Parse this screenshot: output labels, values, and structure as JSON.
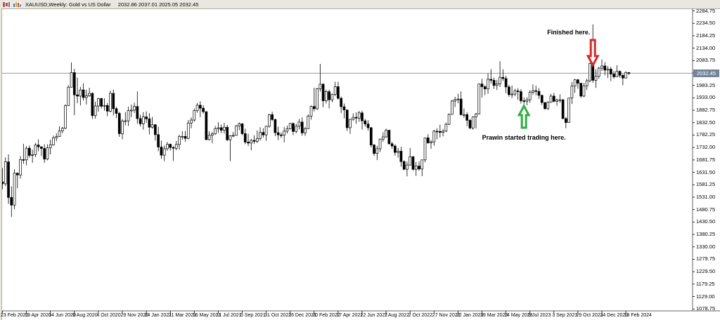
{
  "window": {
    "title_symbol": "XAUUSD,Weekly:",
    "title_description": "Gold vs US Dollar",
    "title_ohlc": "2032.86 2037.01 2025.05 2032.45",
    "icons": [
      "candlestick-chart-icon",
      "bar-chart-icon"
    ]
  },
  "colors": {
    "bull_body": "#ffffff",
    "bear_body": "#000000",
    "candle_outline": "#000000",
    "price_line": "#9a9a9a",
    "price_box_bg": "#74859a",
    "price_box_text": "#ffffff",
    "axis_line": "#666666",
    "annotation_red": "#d42a2a",
    "annotation_green": "#2fae44"
  },
  "axis": {
    "current_price": "2032.45",
    "price_ticks": [
      "2284.75",
      "2234.50",
      "2184.25",
      "2134.00",
      "2083.75",
      "2033.50",
      "1983.25",
      "1933.00",
      "1882.75",
      "1832.50",
      "1782.25",
      "1732.00",
      "1681.75",
      "1631.50",
      "1581.25",
      "1531.00",
      "1480.75",
      "1430.50",
      "1380.25",
      "1330.00",
      "1279.75",
      "1229.50",
      "1179.25",
      "1129.00",
      "1078.75"
    ],
    "date_ticks": [
      "23 Feb 2020",
      "19 Apr 2020",
      "14 Jun 2020",
      "9 Aug 2020",
      "4 Oct 2020",
      "29 Nov 2020",
      "24 Jan 2021",
      "21 Mar 2021",
      "16 May 2021",
      "11 Jul 2021",
      "5 Sep 2021",
      "31 Oct 2021",
      "26 Dec 2021",
      "20 Feb 2022",
      "17 Apr 2022",
      "12 Jun 2022",
      "7 Aug 2022",
      "2 Oct 2022",
      "27 Nov 2022",
      "22 Jan 2023",
      "19 Mar 2023",
      "14 May 2023",
      "9 Jul 2023",
      "3 Sep 2023",
      "29 Oct 2023",
      "24 Dec 2023",
      "18 Feb 2024"
    ]
  },
  "chart_data": {
    "type": "candlestick",
    "symbol": "XAUUSD",
    "timeframe": "Weekly",
    "title": "XAUUSD,Weekly: Gold vs US Dollar",
    "start_date": "23 Feb 2020",
    "end_date": "25 Feb 2024",
    "ylim": [
      1071,
      2294
    ],
    "grid": false,
    "current_price": 2032.45,
    "first_open": 1593,
    "candles_format": [
      "high",
      "low",
      "close"
    ],
    "candles": [
      [
        1649,
        1563,
        1585
      ],
      [
        1692,
        1576,
        1674
      ],
      [
        1704,
        1504,
        1530
      ],
      [
        1575,
        1451,
        1499
      ],
      [
        1644,
        1482,
        1628
      ],
      [
        1631,
        1567,
        1621
      ],
      [
        1697,
        1606,
        1683
      ],
      [
        1747,
        1666,
        1682
      ],
      [
        1738,
        1660,
        1729
      ],
      [
        1740,
        1691,
        1700
      ],
      [
        1723,
        1670,
        1703
      ],
      [
        1751,
        1693,
        1742
      ],
      [
        1765,
        1717,
        1735
      ],
      [
        1735,
        1697,
        1728
      ],
      [
        1745,
        1670,
        1685
      ],
      [
        1745,
        1680,
        1731
      ],
      [
        1764,
        1704,
        1743
      ],
      [
        1780,
        1740,
        1771
      ],
      [
        1789,
        1757,
        1776
      ],
      [
        1818,
        1775,
        1799
      ],
      [
        1815,
        1790,
        1810
      ],
      [
        1906,
        1806,
        1902
      ],
      [
        1984,
        1900,
        1976
      ],
      [
        2076,
        1980,
        2035
      ],
      [
        2050,
        1863,
        1945
      ],
      [
        2015,
        1911,
        1940
      ],
      [
        1977,
        1902,
        1965
      ],
      [
        1992,
        1922,
        1934
      ],
      [
        1966,
        1906,
        1941
      ],
      [
        1974,
        1937,
        1951
      ],
      [
        1955,
        1848,
        1861
      ],
      [
        1917,
        1849,
        1900
      ],
      [
        1933,
        1877,
        1930
      ],
      [
        1933,
        1890,
        1899
      ],
      [
        1931,
        1881,
        1902
      ],
      [
        1912,
        1859,
        1879
      ],
      [
        1962,
        1874,
        1951
      ],
      [
        1966,
        1862,
        1889
      ],
      [
        1896,
        1851,
        1870
      ],
      [
        1876,
        1775,
        1788
      ],
      [
        1847,
        1765,
        1839
      ],
      [
        1875,
        1822,
        1840
      ],
      [
        1897,
        1819,
        1881
      ],
      [
        1906,
        1855,
        1883
      ],
      [
        1913,
        1872,
        1898
      ],
      [
        1959,
        1828,
        1849
      ],
      [
        1864,
        1817,
        1828
      ],
      [
        1875,
        1804,
        1856
      ],
      [
        1878,
        1832,
        1848
      ],
      [
        1871,
        1785,
        1814
      ],
      [
        1856,
        1808,
        1824
      ],
      [
        1827,
        1760,
        1784
      ],
      [
        1816,
        1717,
        1734
      ],
      [
        1760,
        1686,
        1701
      ],
      [
        1740,
        1677,
        1727
      ],
      [
        1755,
        1719,
        1745
      ],
      [
        1748,
        1720,
        1732
      ],
      [
        1738,
        1678,
        1729
      ],
      [
        1758,
        1721,
        1744
      ],
      [
        1784,
        1723,
        1776
      ],
      [
        1798,
        1764,
        1777
      ],
      [
        1798,
        1756,
        1769
      ],
      [
        1843,
        1765,
        1831
      ],
      [
        1854,
        1810,
        1843
      ],
      [
        1890,
        1836,
        1881
      ],
      [
        1912,
        1873,
        1903
      ],
      [
        1919,
        1855,
        1891
      ],
      [
        1903,
        1869,
        1877
      ],
      [
        1878,
        1761,
        1764
      ],
      [
        1797,
        1760,
        1781
      ],
      [
        1795,
        1749,
        1787
      ],
      [
        1819,
        1783,
        1808
      ],
      [
        1834,
        1791,
        1812
      ],
      [
        1825,
        1790,
        1802
      ],
      [
        1832,
        1789,
        1814
      ],
      [
        1823,
        1758,
        1763
      ],
      [
        1782,
        1677,
        1780
      ],
      [
        1795,
        1774,
        1781
      ],
      [
        1823,
        1780,
        1819
      ],
      [
        1834,
        1802,
        1828
      ],
      [
        1830,
        1782,
        1788
      ],
      [
        1808,
        1745,
        1754
      ],
      [
        1787,
        1738,
        1750
      ],
      [
        1767,
        1721,
        1761
      ],
      [
        1781,
        1746,
        1757
      ],
      [
        1801,
        1750,
        1768
      ],
      [
        1814,
        1760,
        1793
      ],
      [
        1810,
        1772,
        1783
      ],
      [
        1820,
        1759,
        1818
      ],
      [
        1868,
        1812,
        1865
      ],
      [
        1877,
        1839,
        1845
      ],
      [
        1849,
        1778,
        1792
      ],
      [
        1816,
        1762,
        1783
      ],
      [
        1793,
        1770,
        1782
      ],
      [
        1815,
        1753,
        1798
      ],
      [
        1820,
        1789,
        1808
      ],
      [
        1832,
        1805,
        1829
      ],
      [
        1833,
        1782,
        1797
      ],
      [
        1828,
        1790,
        1818
      ],
      [
        1848,
        1805,
        1835
      ],
      [
        1854,
        1780,
        1791
      ],
      [
        1815,
        1779,
        1808
      ],
      [
        1866,
        1807,
        1859
      ],
      [
        1902,
        1845,
        1898
      ],
      [
        1974,
        1878,
        1889
      ],
      [
        1974,
        1884,
        1970
      ],
      [
        2070,
        1958,
        1988
      ],
      [
        1992,
        1895,
        1921
      ],
      [
        1966,
        1910,
        1958
      ],
      [
        1966,
        1890,
        1925
      ],
      [
        1950,
        1915,
        1947
      ],
      [
        1998,
        1940,
        1978
      ],
      [
        1998,
        1926,
        1931
      ],
      [
        1938,
        1871,
        1897
      ],
      [
        1910,
        1850,
        1884
      ],
      [
        1884,
        1799,
        1812
      ],
      [
        1848,
        1787,
        1846
      ],
      [
        1870,
        1840,
        1854
      ],
      [
        1874,
        1828,
        1851
      ],
      [
        1880,
        1836,
        1872
      ],
      [
        1880,
        1805,
        1840
      ],
      [
        1848,
        1816,
        1827
      ],
      [
        1842,
        1800,
        1812
      ],
      [
        1815,
        1732,
        1742
      ],
      [
        1746,
        1698,
        1708
      ],
      [
        1739,
        1681,
        1727
      ],
      [
        1768,
        1714,
        1766
      ],
      [
        1794,
        1755,
        1775
      ],
      [
        1808,
        1772,
        1802
      ],
      [
        1802,
        1744,
        1747
      ],
      [
        1755,
        1727,
        1738
      ],
      [
        1745,
        1699,
        1712
      ],
      [
        1730,
        1691,
        1717
      ],
      [
        1735,
        1654,
        1675
      ],
      [
        1680,
        1640,
        1644
      ],
      [
        1675,
        1615,
        1661
      ],
      [
        1730,
        1659,
        1695
      ],
      [
        1683,
        1638,
        1644
      ],
      [
        1674,
        1617,
        1657
      ],
      [
        1675,
        1638,
        1645
      ],
      [
        1683,
        1616,
        1682
      ],
      [
        1772,
        1672,
        1771
      ],
      [
        1786,
        1747,
        1751
      ],
      [
        1762,
        1727,
        1755
      ],
      [
        1804,
        1739,
        1798
      ],
      [
        1810,
        1765,
        1797
      ],
      [
        1824,
        1772,
        1793
      ],
      [
        1807,
        1777,
        1798
      ],
      [
        1833,
        1794,
        1826
      ],
      [
        1870,
        1823,
        1866
      ],
      [
        1925,
        1865,
        1920
      ],
      [
        1937,
        1896,
        1926
      ],
      [
        1949,
        1911,
        1928
      ],
      [
        1959,
        1861,
        1865
      ],
      [
        1890,
        1852,
        1865
      ],
      [
        1875,
        1819,
        1842
      ],
      [
        1847,
        1806,
        1811
      ],
      [
        1858,
        1804,
        1856
      ],
      [
        1872,
        1809,
        1868
      ],
      [
        1990,
        1866,
        1989
      ],
      [
        2010,
        1934,
        1978
      ],
      [
        1984,
        1944,
        1969
      ],
      [
        2032,
        1949,
        2008
      ],
      [
        2049,
        1991,
        2004
      ],
      [
        2015,
        1969,
        1983
      ],
      [
        2006,
        1965,
        1990
      ],
      [
        2081,
        1977,
        2016
      ],
      [
        2048,
        2001,
        2011
      ],
      [
        2022,
        1952,
        1977
      ],
      [
        1985,
        1937,
        1946
      ],
      [
        1983,
        1932,
        1948
      ],
      [
        1970,
        1939,
        1961
      ],
      [
        1972,
        1925,
        1958
      ],
      [
        1968,
        1910,
        1921
      ],
      [
        1934,
        1893,
        1919
      ],
      [
        1935,
        1903,
        1925
      ],
      [
        1964,
        1913,
        1955
      ],
      [
        1987,
        1946,
        1962
      ],
      [
        1982,
        1943,
        1959
      ],
      [
        1972,
        1929,
        1943
      ],
      [
        1946,
        1904,
        1914
      ],
      [
        1915,
        1885,
        1889
      ],
      [
        1919,
        1884,
        1915
      ],
      [
        1949,
        1913,
        1940
      ],
      [
        1953,
        1915,
        1919
      ],
      [
        1930,
        1901,
        1924
      ],
      [
        1947,
        1913,
        1925
      ],
      [
        1928,
        1847,
        1849
      ],
      [
        1855,
        1810,
        1833
      ],
      [
        1933,
        1832,
        1932
      ],
      [
        1997,
        1908,
        1981
      ],
      [
        2009,
        1953,
        2006
      ],
      [
        2009,
        1970,
        1992
      ],
      [
        1993,
        1933,
        1940
      ],
      [
        1993,
        1935,
        1981
      ],
      [
        2010,
        1965,
        2002
      ],
      [
        2075,
        1996,
        2072
      ],
      [
        2230,
        1994,
        2004
      ],
      [
        2048,
        1973,
        2020
      ],
      [
        2058,
        2010,
        2053
      ],
      [
        2088,
        2042,
        2062
      ],
      [
        2077,
        2024,
        2045
      ],
      [
        2062,
        2013,
        2049
      ],
      [
        2058,
        2001,
        2029
      ],
      [
        2041,
        2010,
        2018
      ],
      [
        2065,
        2017,
        2040
      ],
      [
        2044,
        2014,
        2024
      ],
      [
        2029,
        1984,
        2013
      ],
      [
        2041,
        2016,
        2035
      ],
      [
        2037,
        2025,
        2032.45
      ]
    ],
    "annotations": [
      {
        "text": "Finished here.",
        "arrow": "down",
        "color": "red",
        "week_index": 197,
        "tip_price": 2065,
        "tail_price": 2167
      },
      {
        "text": "Prawin started trading here.",
        "arrow": "up",
        "color": "green",
        "week_index": 174,
        "tip_price": 1900,
        "tail_price": 1812
      }
    ]
  }
}
